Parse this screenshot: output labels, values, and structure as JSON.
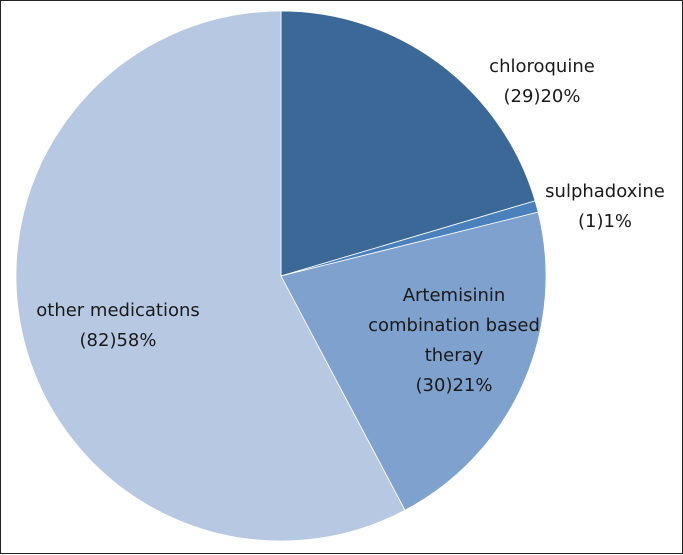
{
  "chart_data": {
    "type": "pie",
    "categories": [
      "chloroquine",
      "sulphadoxine",
      "Artemisinin combination based theray",
      "other medications"
    ],
    "values": [
      29,
      1,
      30,
      82
    ],
    "value_labels": [
      "(29)20%",
      "(1)1%",
      "(30)21%",
      "(82)58%"
    ],
    "colors": [
      "#3b6896",
      "#4a80bb",
      "#7ea1cd",
      "#b7c9e2"
    ]
  }
}
